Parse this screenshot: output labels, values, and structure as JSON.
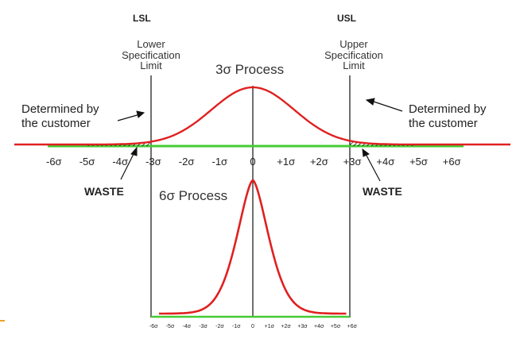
{
  "headers": {
    "lsl": "LSL",
    "usl": "USL"
  },
  "spec_labels": {
    "lower": [
      "Lower",
      "Specification",
      "Limit"
    ],
    "upper": [
      "Upper",
      "Specification",
      "Limit"
    ]
  },
  "process_labels": {
    "three_sigma": "3σ Process",
    "six_sigma": "6σ Process"
  },
  "customer_labels": {
    "left": [
      "Determined by",
      "the customer"
    ],
    "right": [
      "Determined by",
      "the customer"
    ]
  },
  "waste_labels": {
    "left": "WASTE",
    "right": "WASTE"
  },
  "axis_ticks": [
    "-6σ",
    "-5σ",
    "-4σ",
    "-3σ",
    "-2σ",
    "-1σ",
    "0",
    "+1σ",
    "+2σ",
    "+3σ",
    "+4σ",
    "+5σ",
    "+6σ"
  ],
  "small_axis_ticks": [
    "-6σ",
    "-5σ",
    "-4σ",
    "-3σ",
    "-2σ",
    "-1σ",
    "0",
    "+1σ",
    "+2σ",
    "+3σ",
    "+4σ",
    "+5σ",
    "+6σ"
  ],
  "colors": {
    "curve": "#e02020",
    "axis": "#44cc33",
    "line": "#222222",
    "waste_hatch": "#111111"
  }
}
